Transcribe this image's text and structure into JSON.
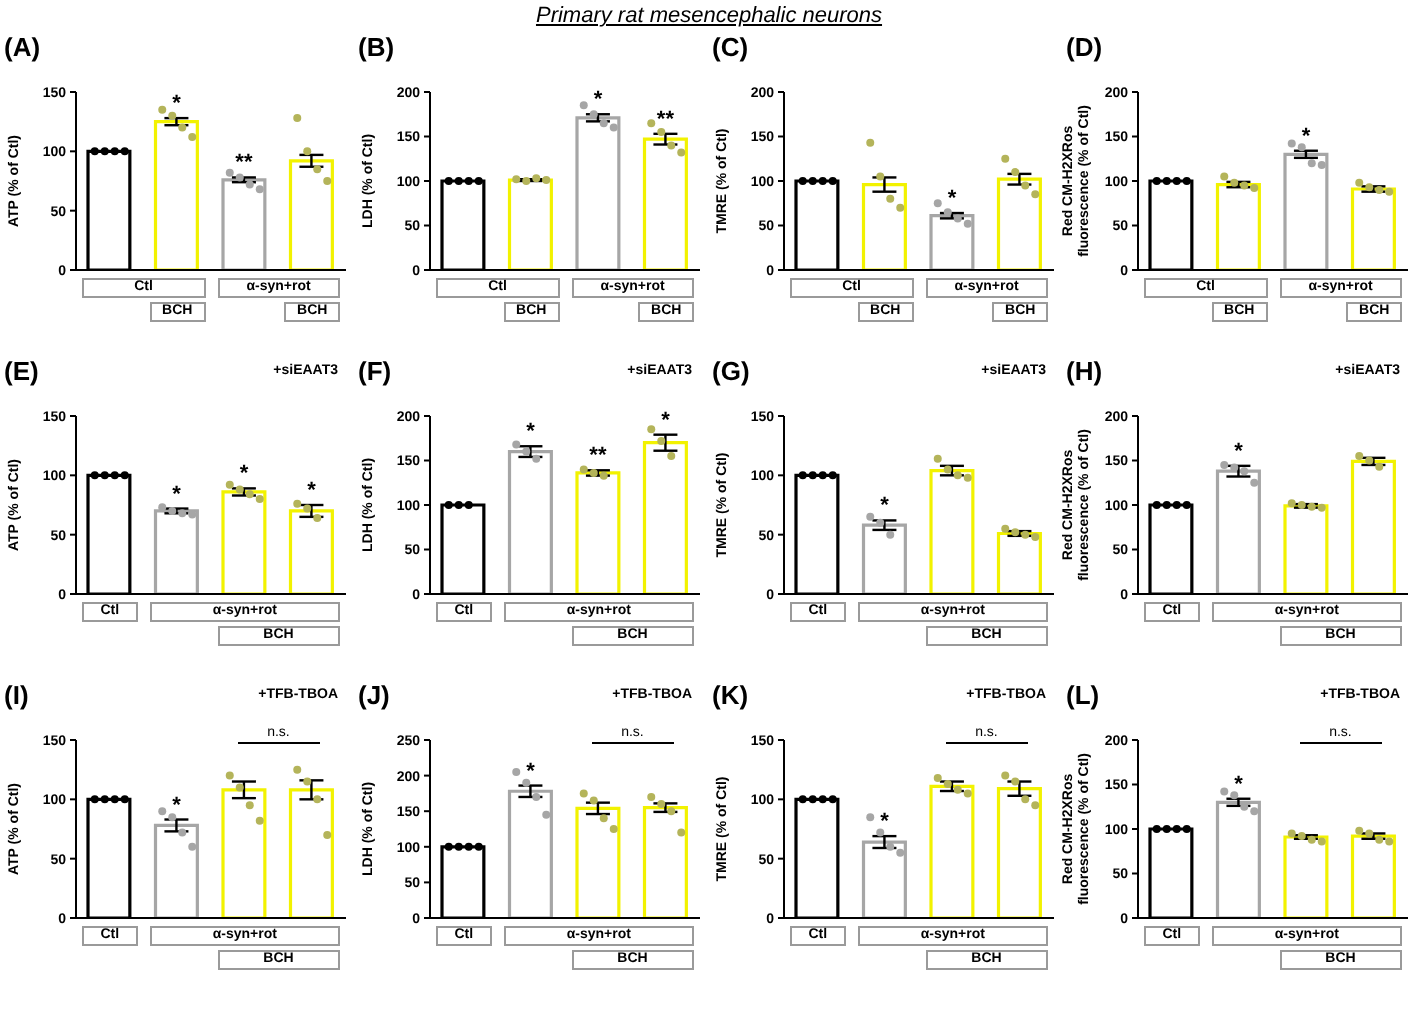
{
  "chart_data": [
    {
      "type": "bar",
      "title": "(A)",
      "ylabel": "ATP (% of Ctl)",
      "categories": [
        null,
        null,
        null,
        null
      ],
      "ylim": [
        0,
        150
      ],
      "yticks": [
        0,
        50,
        100,
        150
      ],
      "annotations": [
        "Ctl",
        "BCH",
        "α-syn+rot",
        "BCH"
      ],
      "series": [
        {
          "type": "bar",
          "values": [
            100,
            125,
            76,
            92
          ],
          "errors": [
            0,
            3,
            2,
            5
          ],
          "value_labels": [
            null,
            "*",
            "**",
            null
          ],
          "colors": [
            "#000000",
            "#f2f200",
            "#a6a6a6",
            "#f2f200"
          ]
        },
        {
          "type": "scatter",
          "values": [
            100,
            135,
            82,
            128
          ],
          "colors": [
            "#000000",
            "#b4b45a",
            "#a6a6a6",
            "#b4b45a"
          ]
        },
        {
          "type": "scatter",
          "values": [
            100,
            130,
            78,
            100
          ],
          "colors": [
            "#000000",
            "#b4b45a",
            "#a6a6a6",
            "#b4b45a"
          ]
        },
        {
          "type": "scatter",
          "values": [
            100,
            120,
            72,
            85
          ],
          "colors": [
            "#000000",
            "#b4b45a",
            "#a6a6a6",
            "#b4b45a"
          ]
        },
        {
          "type": "scatter",
          "values": [
            100,
            112,
            68,
            75
          ],
          "colors": [
            "#000000",
            "#b4b45a",
            "#a6a6a6",
            "#b4b45a"
          ]
        }
      ]
    },
    {
      "type": "bar",
      "subtitle": "Primary rat mesencephalic neurons",
      "title": "(B)",
      "ylabel": "LDH (% of Ctl)",
      "categories": [
        null,
        null,
        null,
        null
      ],
      "ylim": [
        0,
        200
      ],
      "yticks": [
        0,
        50,
        100,
        150,
        200
      ],
      "annotations": [
        "Ctl",
        "BCH",
        "α-syn+rot",
        "BCH"
      ],
      "series": [
        {
          "type": "bar",
          "values": [
            100,
            101,
            171,
            147
          ],
          "errors": [
            0,
            1,
            4,
            6
          ],
          "value_labels": [
            null,
            null,
            "*",
            "**"
          ],
          "colors": [
            "#000000",
            "#f2f200",
            "#a6a6a6",
            "#f2f200"
          ]
        },
        {
          "type": "scatter",
          "values": [
            100,
            102,
            185,
            165
          ],
          "colors": [
            "#000000",
            "#b4b45a",
            "#a6a6a6",
            "#b4b45a"
          ]
        },
        {
          "type": "scatter",
          "values": [
            100,
            100,
            175,
            155
          ],
          "colors": [
            "#000000",
            "#b4b45a",
            "#a6a6a6",
            "#b4b45a"
          ]
        },
        {
          "type": "scatter",
          "values": [
            100,
            103,
            165,
            140
          ],
          "colors": [
            "#000000",
            "#b4b45a",
            "#a6a6a6",
            "#b4b45a"
          ]
        },
        {
          "type": "scatter",
          "values": [
            100,
            101,
            160,
            132
          ],
          "colors": [
            "#000000",
            "#b4b45a",
            "#a6a6a6",
            "#b4b45a"
          ]
        }
      ]
    },
    {
      "type": "bar",
      "title": "(C)",
      "ylabel": "TMRE (% of Ctl)",
      "categories": [
        null,
        null,
        null,
        null
      ],
      "ylim": [
        0,
        200
      ],
      "yticks": [
        0,
        50,
        100,
        150,
        200
      ],
      "annotations": [
        "Ctl",
        "BCH",
        "α-syn+rot",
        "BCH"
      ],
      "series": [
        {
          "type": "bar",
          "values": [
            100,
            96,
            61,
            102
          ],
          "errors": [
            0,
            8,
            3,
            6
          ],
          "value_labels": [
            null,
            null,
            "*",
            null
          ],
          "colors": [
            "#000000",
            "#f2f200",
            "#a6a6a6",
            "#f2f200"
          ]
        },
        {
          "type": "scatter",
          "values": [
            100,
            143,
            75,
            125
          ],
          "colors": [
            "#000000",
            "#b4b45a",
            "#a6a6a6",
            "#b4b45a"
          ]
        },
        {
          "type": "scatter",
          "values": [
            100,
            105,
            65,
            110
          ],
          "colors": [
            "#000000",
            "#b4b45a",
            "#a6a6a6",
            "#b4b45a"
          ]
        },
        {
          "type": "scatter",
          "values": [
            100,
            80,
            58,
            95
          ],
          "colors": [
            "#000000",
            "#b4b45a",
            "#a6a6a6",
            "#b4b45a"
          ]
        },
        {
          "type": "scatter",
          "values": [
            100,
            70,
            52,
            85
          ],
          "colors": [
            "#000000",
            "#b4b45a",
            "#a6a6a6",
            "#b4b45a"
          ]
        }
      ]
    },
    {
      "type": "bar",
      "title": "(D)",
      "ylabel": "Red CM-H2XRos fluorescence (% of Ctl)",
      "categories": [
        null,
        null,
        null,
        null
      ],
      "ylim": [
        0,
        200
      ],
      "yticks": [
        0,
        50,
        100,
        150,
        200
      ],
      "annotations": [
        "Ctl",
        "BCH",
        "α-syn+rot",
        "BCH"
      ],
      "series": [
        {
          "type": "bar",
          "values": [
            100,
            96,
            130,
            91
          ],
          "errors": [
            0,
            3,
            4,
            3
          ],
          "value_labels": [
            null,
            null,
            "*",
            null
          ],
          "colors": [
            "#000000",
            "#f2f200",
            "#a6a6a6",
            "#f2f200"
          ]
        },
        {
          "type": "scatter",
          "values": [
            100,
            105,
            142,
            98
          ],
          "colors": [
            "#000000",
            "#b4b45a",
            "#a6a6a6",
            "#b4b45a"
          ]
        },
        {
          "type": "scatter",
          "values": [
            100,
            98,
            138,
            93
          ],
          "colors": [
            "#000000",
            "#b4b45a",
            "#a6a6a6",
            "#b4b45a"
          ]
        },
        {
          "type": "scatter",
          "values": [
            100,
            95,
            120,
            90
          ],
          "colors": [
            "#000000",
            "#b4b45a",
            "#a6a6a6",
            "#b4b45a"
          ]
        },
        {
          "type": "scatter",
          "values": [
            100,
            92,
            118,
            88
          ],
          "colors": [
            "#000000",
            "#b4b45a",
            "#a6a6a6",
            "#b4b45a"
          ]
        }
      ]
    },
    {
      "type": "bar",
      "title": "(E)",
      "ylabel": "ATP (% of Ctl)",
      "categories": [
        null,
        null,
        null,
        null
      ],
      "ylim": [
        0,
        150
      ],
      "yticks": [
        0,
        50,
        100,
        150
      ],
      "annotations": [
        "+siEAAT3",
        "Ctl",
        "α-syn+rot",
        "BCH"
      ],
      "series": [
        {
          "type": "bar",
          "values": [
            100,
            70,
            86,
            70
          ],
          "errors": [
            0,
            2,
            3,
            5
          ],
          "value_labels": [
            null,
            "*",
            "*",
            "*"
          ],
          "colors": [
            "#000000",
            "#a6a6a6",
            "#f2f200",
            "#f2f200"
          ]
        },
        {
          "type": "scatter",
          "values": [
            100,
            73,
            92,
            76
          ],
          "colors": [
            "#000000",
            "#a6a6a6",
            "#b4b45a",
            "#b4b45a"
          ]
        },
        {
          "type": "scatter",
          "values": [
            100,
            70,
            88,
            72
          ],
          "colors": [
            "#000000",
            "#a6a6a6",
            "#b4b45a",
            "#b4b45a"
          ]
        },
        {
          "type": "scatter",
          "values": [
            100,
            68,
            84,
            64
          ],
          "colors": [
            "#000000",
            "#a6a6a6",
            "#b4b45a",
            "#b4b45a"
          ]
        },
        {
          "type": "scatter",
          "values": [
            100,
            67,
            80,
            null
          ],
          "colors": [
            "#000000",
            "#a6a6a6",
            "#b4b45a",
            "#b4b45a"
          ]
        }
      ]
    },
    {
      "type": "bar",
      "title": "(F)",
      "ylabel": "LDH (% of Ctl)",
      "categories": [
        null,
        null,
        null,
        null
      ],
      "ylim": [
        0,
        200
      ],
      "yticks": [
        0,
        50,
        100,
        150,
        200
      ],
      "annotations": [
        "+siEAAT3",
        "Ctl",
        "α-syn+rot",
        "BCH"
      ],
      "series": [
        {
          "type": "bar",
          "values": [
            100,
            160,
            136,
            170
          ],
          "errors": [
            0,
            6,
            3,
            9
          ],
          "value_labels": [
            null,
            "*",
            "**",
            "*"
          ],
          "colors": [
            "#000000",
            "#a6a6a6",
            "#f2f200",
            "#f2f200"
          ]
        },
        {
          "type": "scatter",
          "values": [
            100,
            168,
            140,
            185
          ],
          "colors": [
            "#000000",
            "#a6a6a6",
            "#b4b45a",
            "#b4b45a"
          ]
        },
        {
          "type": "scatter",
          "values": [
            100,
            160,
            136,
            172
          ],
          "colors": [
            "#000000",
            "#a6a6a6",
            "#b4b45a",
            "#b4b45a"
          ]
        },
        {
          "type": "scatter",
          "values": [
            100,
            152,
            133,
            155
          ],
          "colors": [
            "#000000",
            "#a6a6a6",
            "#b4b45a",
            "#b4b45a"
          ]
        }
      ]
    },
    {
      "type": "bar",
      "title": "(G)",
      "ylabel": "TMRE (% of Ctl)",
      "categories": [
        null,
        null,
        null,
        null
      ],
      "ylim": [
        0,
        150
      ],
      "yticks": [
        0,
        50,
        100,
        150
      ],
      "annotations": [
        "+siEAAT3",
        "Ctl",
        "α-syn+rot",
        "BCH"
      ],
      "series": [
        {
          "type": "bar",
          "values": [
            100,
            58,
            104,
            51
          ],
          "errors": [
            0,
            4,
            4,
            2
          ],
          "value_labels": [
            null,
            "*",
            null,
            null
          ],
          "colors": [
            "#000000",
            "#a6a6a6",
            "#f2f200",
            "#f2f200"
          ]
        },
        {
          "type": "scatter",
          "values": [
            100,
            65,
            114,
            55
          ],
          "colors": [
            "#000000",
            "#a6a6a6",
            "#b4b45a",
            "#b4b45a"
          ]
        },
        {
          "type": "scatter",
          "values": [
            100,
            60,
            105,
            52
          ],
          "colors": [
            "#000000",
            "#a6a6a6",
            "#b4b45a",
            "#b4b45a"
          ]
        },
        {
          "type": "scatter",
          "values": [
            100,
            50,
            100,
            50
          ],
          "colors": [
            "#000000",
            "#a6a6a6",
            "#b4b45a",
            "#b4b45a"
          ]
        },
        {
          "type": "scatter",
          "values": [
            100,
            null,
            98,
            48
          ],
          "colors": [
            "#000000",
            "#a6a6a6",
            "#b4b45a",
            "#b4b45a"
          ]
        }
      ]
    },
    {
      "type": "bar",
      "title": "(H)",
      "ylabel": "Red CM-H2XRos fluorescence (% of Ctl)",
      "categories": [
        null,
        null,
        null,
        null
      ],
      "ylim": [
        0,
        200
      ],
      "yticks": [
        0,
        50,
        100,
        150,
        200
      ],
      "annotations": [
        "+siEAAT3",
        "Ctl",
        "α-syn+rot",
        "BCH"
      ],
      "series": [
        {
          "type": "bar",
          "values": [
            100,
            138,
            99,
            149
          ],
          "errors": [
            0,
            6,
            2,
            4
          ],
          "value_labels": [
            null,
            "*",
            null,
            null
          ],
          "colors": [
            "#000000",
            "#a6a6a6",
            "#f2f200",
            "#f2f200"
          ]
        },
        {
          "type": "scatter",
          "values": [
            100,
            145,
            102,
            155
          ],
          "colors": [
            "#000000",
            "#a6a6a6",
            "#b4b45a",
            "#b4b45a"
          ]
        },
        {
          "type": "scatter",
          "values": [
            100,
            142,
            100,
            150
          ],
          "colors": [
            "#000000",
            "#a6a6a6",
            "#b4b45a",
            "#b4b45a"
          ]
        },
        {
          "type": "scatter",
          "values": [
            100,
            138,
            98,
            143
          ],
          "colors": [
            "#000000",
            "#a6a6a6",
            "#b4b45a",
            "#b4b45a"
          ]
        },
        {
          "type": "scatter",
          "values": [
            100,
            125,
            97,
            null
          ],
          "colors": [
            "#000000",
            "#a6a6a6",
            "#b4b45a",
            "#b4b45a"
          ]
        }
      ]
    },
    {
      "type": "bar",
      "title": "(I)",
      "ylabel": "ATP (% of Ctl)",
      "categories": [
        null,
        null,
        null,
        null
      ],
      "ylim": [
        0,
        150
      ],
      "yticks": [
        0,
        50,
        100,
        150
      ],
      "annotations": [
        "+TFB-TBOA",
        "n.s.",
        "Ctl",
        "α-syn+rot",
        "BCH"
      ],
      "series": [
        {
          "type": "bar",
          "values": [
            100,
            78,
            108,
            108
          ],
          "errors": [
            0,
            5,
            7,
            8
          ],
          "value_labels": [
            null,
            "*",
            null,
            null
          ],
          "colors": [
            "#000000",
            "#a6a6a6",
            "#f2f200",
            "#f2f200"
          ]
        },
        {
          "type": "scatter",
          "values": [
            100,
            90,
            120,
            125
          ],
          "colors": [
            "#000000",
            "#a6a6a6",
            "#b4b45a",
            "#b4b45a"
          ]
        },
        {
          "type": "scatter",
          "values": [
            100,
            85,
            110,
            115
          ],
          "colors": [
            "#000000",
            "#a6a6a6",
            "#b4b45a",
            "#b4b45a"
          ]
        },
        {
          "type": "scatter",
          "values": [
            100,
            72,
            95,
            100
          ],
          "colors": [
            "#000000",
            "#a6a6a6",
            "#b4b45a",
            "#b4b45a"
          ]
        },
        {
          "type": "scatter",
          "values": [
            100,
            60,
            82,
            70
          ],
          "colors": [
            "#000000",
            "#a6a6a6",
            "#b4b45a",
            "#b4b45a"
          ]
        }
      ]
    },
    {
      "type": "bar",
      "title": "(J)",
      "ylabel": "LDH (% of Ctl)",
      "categories": [
        null,
        null,
        null,
        null
      ],
      "ylim": [
        0,
        250
      ],
      "yticks": [
        0,
        50,
        100,
        150,
        200,
        250
      ],
      "annotations": [
        "+TFB-TBOA",
        "n.s.",
        "Ctl",
        "α-syn+rot",
        "BCH"
      ],
      "series": [
        {
          "type": "bar",
          "values": [
            100,
            178,
            154,
            155
          ],
          "errors": [
            0,
            8,
            8,
            6
          ],
          "value_labels": [
            null,
            "*",
            null,
            null
          ],
          "colors": [
            "#000000",
            "#a6a6a6",
            "#f2f200",
            "#f2f200"
          ]
        },
        {
          "type": "scatter",
          "values": [
            100,
            205,
            175,
            170
          ],
          "colors": [
            "#000000",
            "#a6a6a6",
            "#b4b45a",
            "#b4b45a"
          ]
        },
        {
          "type": "scatter",
          "values": [
            100,
            190,
            165,
            160
          ],
          "colors": [
            "#000000",
            "#a6a6a6",
            "#b4b45a",
            "#b4b45a"
          ]
        },
        {
          "type": "scatter",
          "values": [
            100,
            170,
            140,
            150
          ],
          "colors": [
            "#000000",
            "#a6a6a6",
            "#b4b45a",
            "#b4b45a"
          ]
        },
        {
          "type": "scatter",
          "values": [
            100,
            145,
            125,
            120
          ],
          "colors": [
            "#000000",
            "#a6a6a6",
            "#b4b45a",
            "#b4b45a"
          ]
        }
      ]
    },
    {
      "type": "bar",
      "title": "(K)",
      "ylabel": "TMRE (% of Ctl)",
      "categories": [
        null,
        null,
        null,
        null
      ],
      "ylim": [
        0,
        150
      ],
      "yticks": [
        0,
        50,
        100,
        150
      ],
      "annotations": [
        "+TFB-TBOA",
        "n.s.",
        "Ctl",
        "α-syn+rot",
        "BCH"
      ],
      "series": [
        {
          "type": "bar",
          "values": [
            100,
            64,
            111,
            109
          ],
          "errors": [
            0,
            5,
            4,
            6
          ],
          "value_labels": [
            null,
            "*",
            null,
            null
          ],
          "colors": [
            "#000000",
            "#a6a6a6",
            "#f2f200",
            "#f2f200"
          ]
        },
        {
          "type": "scatter",
          "values": [
            100,
            85,
            118,
            120
          ],
          "colors": [
            "#000000",
            "#a6a6a6",
            "#b4b45a",
            "#b4b45a"
          ]
        },
        {
          "type": "scatter",
          "values": [
            100,
            72,
            113,
            115
          ],
          "colors": [
            "#000000",
            "#a6a6a6",
            "#b4b45a",
            "#b4b45a"
          ]
        },
        {
          "type": "scatter",
          "values": [
            100,
            60,
            108,
            100
          ],
          "colors": [
            "#000000",
            "#a6a6a6",
            "#b4b45a",
            "#b4b45a"
          ]
        },
        {
          "type": "scatter",
          "values": [
            100,
            55,
            105,
            95
          ],
          "colors": [
            "#000000",
            "#a6a6a6",
            "#b4b45a",
            "#b4b45a"
          ]
        }
      ]
    },
    {
      "type": "bar",
      "title": "(L)",
      "ylabel": "Red CM-H2XRos fluorescence (% of Ctl)",
      "categories": [
        null,
        null,
        null,
        null
      ],
      "ylim": [
        0,
        200
      ],
      "yticks": [
        0,
        50,
        100,
        150,
        200
      ],
      "annotations": [
        "+TFB-TBOA",
        "n.s.",
        "Ctl",
        "α-syn+rot",
        "BCH"
      ],
      "series": [
        {
          "type": "bar",
          "values": [
            100,
            130,
            91,
            92
          ],
          "errors": [
            0,
            4,
            2,
            3
          ],
          "value_labels": [
            null,
            "*",
            null,
            null
          ],
          "colors": [
            "#000000",
            "#a6a6a6",
            "#f2f200",
            "#f2f200"
          ]
        },
        {
          "type": "scatter",
          "values": [
            100,
            142,
            95,
            98
          ],
          "colors": [
            "#000000",
            "#a6a6a6",
            "#b4b45a",
            "#b4b45a"
          ]
        },
        {
          "type": "scatter",
          "values": [
            100,
            138,
            92,
            95
          ],
          "colors": [
            "#000000",
            "#a6a6a6",
            "#b4b45a",
            "#b4b45a"
          ]
        },
        {
          "type": "scatter",
          "values": [
            100,
            125,
            88,
            88
          ],
          "colors": [
            "#000000",
            "#a6a6a6",
            "#b4b45a",
            "#b4b45a"
          ]
        },
        {
          "type": "scatter",
          "values": [
            100,
            120,
            86,
            86
          ],
          "colors": [
            "#000000",
            "#a6a6a6",
            "#b4b45a",
            "#b4b45a"
          ]
        }
      ]
    }
  ]
}
